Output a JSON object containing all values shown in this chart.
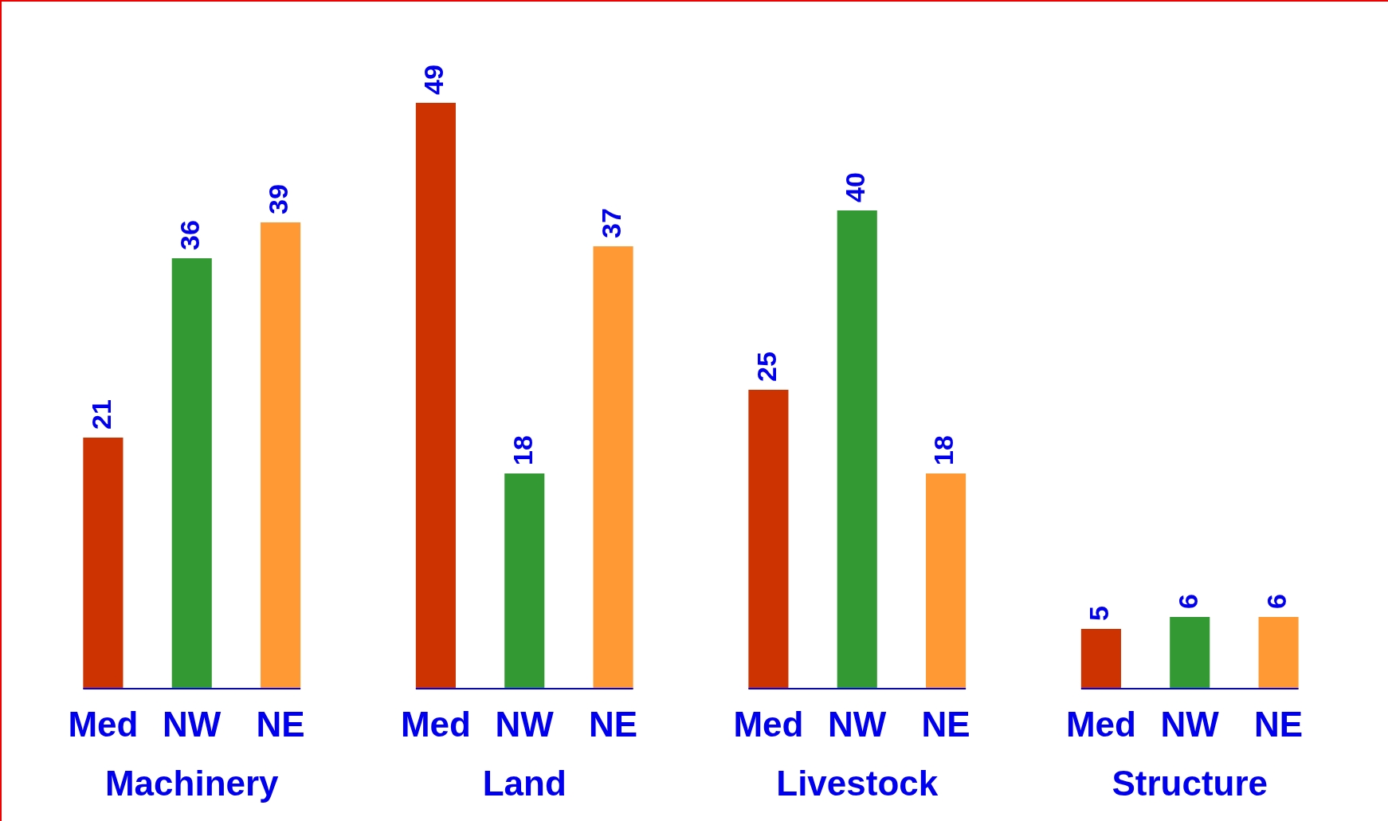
{
  "chart_data": {
    "type": "bar",
    "categories": [
      "Machinery",
      "Land",
      "Livestock",
      "Structure"
    ],
    "series": [
      {
        "name": "Med",
        "color": "#cc3300",
        "values": [
          21,
          49,
          25,
          5
        ]
      },
      {
        "name": "NW",
        "color": "#339933",
        "values": [
          36,
          18,
          40,
          6
        ]
      },
      {
        "name": "NE",
        "color": "#ff9933",
        "values": [
          39,
          37,
          18,
          6
        ]
      }
    ],
    "data_labels": true
  }
}
